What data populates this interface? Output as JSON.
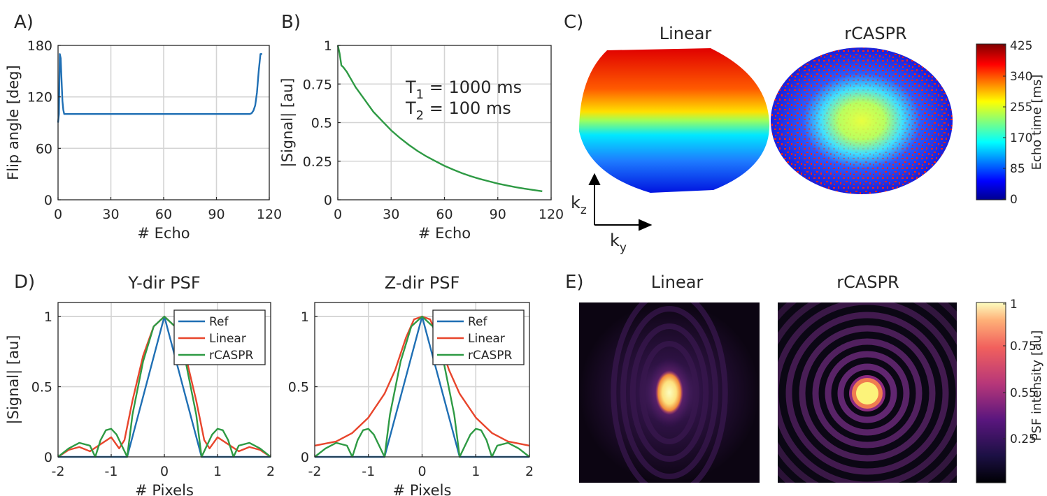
{
  "panel_labels": {
    "a": "A)",
    "b": "B)",
    "c": "C)",
    "d": "D)",
    "e": "E)"
  },
  "colors": {
    "blue": "#1f6fb4",
    "red": "#e8452c",
    "green": "#2e9a44",
    "grid": "#d4d4d4",
    "axis": "#262626"
  },
  "panel_c": {
    "title_linear": "Linear",
    "title_rcaspr": "rCASPR",
    "colorbar_label": "Echo time [ms]",
    "colorbar_ticks": [
      "425",
      "340",
      "255",
      "170",
      "85",
      "0"
    ],
    "axis_kz": "k",
    "axis_kz_sub": "z",
    "axis_ky": "k",
    "axis_ky_sub": "y"
  },
  "panel_e": {
    "title_linear": "Linear",
    "title_rcaspr": "rCASPR",
    "colorbar_label": "PSF intensity [au]",
    "colorbar_ticks": [
      "1",
      "0.75",
      "0.55",
      "0.25"
    ]
  },
  "annotation_b": {
    "t1_main": "T",
    "t1_sub": "1",
    "t1_rest": " = 1000 ms",
    "t2_main": "T",
    "t2_sub": "2",
    "t2_rest": " = 100 ms"
  },
  "chart_data": [
    {
      "id": "A",
      "type": "line",
      "title": "",
      "xlabel": "# Echo",
      "ylabel": "Flip angle [deg]",
      "xlim": [
        0,
        120
      ],
      "ylim": [
        0,
        180
      ],
      "xticks": [
        0,
        30,
        60,
        90,
        120
      ],
      "yticks": [
        0,
        60,
        120,
        180
      ],
      "xticklabels": [
        "0",
        "30",
        "60",
        "90",
        "120"
      ],
      "yticklabels": [
        "0",
        "60",
        "120",
        "180"
      ],
      "grid": true,
      "series": [
        {
          "color": "#1f6fb4",
          "x": [
            0,
            0.5,
            1,
            1.5,
            2,
            2.5,
            3,
            3.5,
            4,
            5,
            6,
            8,
            20,
            40,
            60,
            80,
            100,
            108,
            109,
            110,
            111,
            112,
            113,
            114,
            115,
            116
          ],
          "y": [
            90,
            100,
            170,
            165,
            140,
            115,
            105,
            100,
            100,
            100,
            100,
            100,
            100,
            100,
            100,
            100,
            100,
            100,
            100,
            101,
            104,
            110,
            125,
            150,
            170,
            170
          ]
        }
      ]
    },
    {
      "id": "B",
      "type": "line",
      "title": "",
      "xlabel": "# Echo",
      "ylabel": "|Signal| [au]",
      "xlim": [
        0,
        120
      ],
      "ylim": [
        0,
        1
      ],
      "xticks": [
        0,
        30,
        60,
        90,
        120
      ],
      "yticks": [
        0,
        0.25,
        0.5,
        0.75,
        1
      ],
      "xticklabels": [
        "0",
        "30",
        "60",
        "90",
        "120"
      ],
      "yticklabels": [
        "0",
        "0.25",
        "0.5",
        "0.75",
        "1"
      ],
      "grid": true,
      "series": [
        {
          "color": "#2e9a44",
          "x": [
            0,
            1,
            2,
            3,
            5,
            8,
            10,
            15,
            20,
            25,
            30,
            35,
            40,
            45,
            50,
            55,
            60,
            65,
            70,
            75,
            80,
            85,
            90,
            95,
            100,
            105,
            110,
            115
          ],
          "y": [
            1,
            0.95,
            0.87,
            0.86,
            0.83,
            0.77,
            0.73,
            0.65,
            0.57,
            0.51,
            0.45,
            0.4,
            0.355,
            0.315,
            0.28,
            0.25,
            0.22,
            0.195,
            0.172,
            0.152,
            0.135,
            0.12,
            0.105,
            0.093,
            0.082,
            0.072,
            0.064,
            0.055
          ]
        }
      ]
    },
    {
      "id": "D1",
      "type": "line",
      "title": "Y-dir PSF",
      "xlabel": "# Pixels",
      "ylabel": "|Signal| [au]",
      "xlim": [
        -2,
        2
      ],
      "ylim": [
        0,
        1.1
      ],
      "xticks": [
        -2,
        -1,
        0,
        1,
        2
      ],
      "yticks": [
        0,
        0.5,
        1
      ],
      "xticklabels": [
        "-2",
        "-1",
        "0",
        "1",
        "2"
      ],
      "yticklabels": [
        "0",
        "0.5",
        "1"
      ],
      "grid": true,
      "legend": "top-right",
      "series": [
        {
          "name": "Ref",
          "color": "#1f6fb4",
          "x": [
            -2,
            -0.7,
            0,
            0.7,
            2
          ],
          "y": [
            0,
            0,
            1,
            0,
            0
          ]
        },
        {
          "name": "Linear",
          "color": "#e8452c",
          "x": [
            -2,
            -1.8,
            -1.6,
            -1.4,
            -1.2,
            -1.0,
            -0.85,
            -0.75,
            -0.6,
            -0.4,
            -0.2,
            0,
            0.2,
            0.4,
            0.6,
            0.75,
            0.85,
            1.0,
            1.2,
            1.4,
            1.6,
            1.8,
            2
          ],
          "y": [
            0.0,
            0.05,
            0.07,
            0.04,
            0.09,
            0.14,
            0.06,
            0.12,
            0.4,
            0.72,
            0.93,
            1.0,
            0.93,
            0.72,
            0.4,
            0.12,
            0.06,
            0.14,
            0.09,
            0.04,
            0.07,
            0.05,
            0.0
          ]
        },
        {
          "name": "rCASPR",
          "color": "#2e9a44",
          "x": [
            -2,
            -1.8,
            -1.6,
            -1.4,
            -1.3,
            -1.2,
            -1.1,
            -1.0,
            -0.9,
            -0.8,
            -0.7,
            -0.6,
            -0.4,
            -0.2,
            0,
            0.2,
            0.4,
            0.6,
            0.7,
            0.8,
            0.9,
            1.0,
            1.1,
            1.2,
            1.3,
            1.4,
            1.6,
            1.8,
            2
          ],
          "y": [
            0.0,
            0.06,
            0.1,
            0.08,
            0.0,
            0.12,
            0.19,
            0.2,
            0.16,
            0.08,
            0.0,
            0.3,
            0.68,
            0.93,
            1.0,
            0.93,
            0.68,
            0.3,
            0.0,
            0.08,
            0.16,
            0.2,
            0.19,
            0.12,
            0.0,
            0.08,
            0.1,
            0.06,
            0.0
          ]
        }
      ]
    },
    {
      "id": "D2",
      "type": "line",
      "title": "Z-dir PSF",
      "xlabel": "# Pixels",
      "ylabel": "",
      "xlim": [
        -2,
        2
      ],
      "ylim": [
        0,
        1.1
      ],
      "xticks": [
        -2,
        -1,
        0,
        1,
        2
      ],
      "yticks": [
        0,
        0.5,
        1
      ],
      "xticklabels": [
        "-2",
        "-1",
        "0",
        "1",
        "2"
      ],
      "yticklabels": [
        "0",
        "0.5",
        "1"
      ],
      "grid": true,
      "legend": "top-right",
      "series": [
        {
          "name": "Ref",
          "color": "#1f6fb4",
          "x": [
            -2,
            -0.7,
            0,
            0.7,
            2
          ],
          "y": [
            0,
            0,
            1,
            0,
            0
          ]
        },
        {
          "name": "Linear",
          "color": "#e8452c",
          "x": [
            -2,
            -1.6,
            -1.3,
            -1.0,
            -0.7,
            -0.5,
            -0.3,
            -0.15,
            0,
            0.15,
            0.3,
            0.5,
            0.7,
            1.0,
            1.3,
            1.6,
            2
          ],
          "y": [
            0.08,
            0.11,
            0.17,
            0.28,
            0.45,
            0.62,
            0.85,
            0.98,
            1.0,
            0.98,
            0.85,
            0.62,
            0.45,
            0.28,
            0.17,
            0.11,
            0.08
          ]
        },
        {
          "name": "rCASPR",
          "color": "#2e9a44",
          "x": [
            -2,
            -1.8,
            -1.6,
            -1.4,
            -1.3,
            -1.2,
            -1.1,
            -1.0,
            -0.9,
            -0.8,
            -0.7,
            -0.6,
            -0.4,
            -0.2,
            0,
            0.2,
            0.4,
            0.6,
            0.7,
            0.8,
            0.9,
            1.0,
            1.1,
            1.2,
            1.3,
            1.4,
            1.6,
            1.8,
            2
          ],
          "y": [
            0.0,
            0.06,
            0.1,
            0.08,
            0.0,
            0.12,
            0.19,
            0.2,
            0.16,
            0.08,
            0.0,
            0.3,
            0.68,
            0.93,
            1.0,
            0.93,
            0.68,
            0.3,
            0.0,
            0.08,
            0.16,
            0.2,
            0.19,
            0.12,
            0.0,
            0.08,
            0.1,
            0.06,
            0.0
          ]
        }
      ]
    }
  ]
}
